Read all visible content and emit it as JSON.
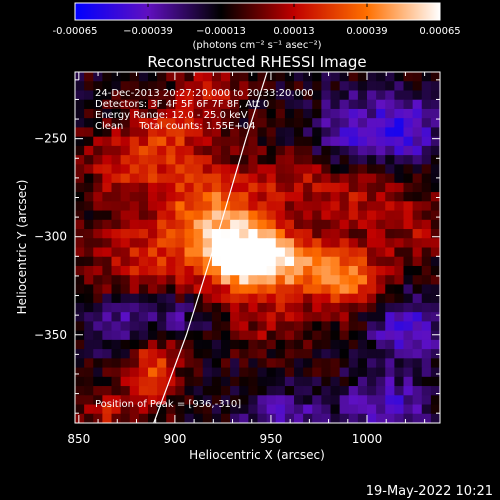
{
  "chart_data": {
    "type": "heatmap",
    "title": "Reconstructed RHESSI Image",
    "xlabel": "Heliocentric X (arcsec)",
    "ylabel": "Heliocentric Y (arcsec)",
    "xlim": [
      848,
      1038
    ],
    "ylim": [
      -395,
      -216
    ],
    "x_ticks": [
      850,
      900,
      950,
      1000
    ],
    "y_ticks": [
      -250,
      -300,
      -350
    ],
    "x_tick_labels": [
      "850",
      "900",
      "950",
      "1000"
    ],
    "y_tick_labels": [
      "−250",
      "−300",
      "−350"
    ],
    "colorbar": {
      "range": [
        -0.00065,
        0.00065
      ],
      "ticks": [
        -0.00065,
        -0.00039,
        -0.00013,
        0.00013,
        0.00039,
        0.00065
      ],
      "tick_labels": [
        "-0.00065",
        "−0.00039",
        "−0.00013",
        "0.00013",
        "0.00039",
        "0.00065"
      ],
      "unit_label": "(photons cm⁻² s⁻¹ asec⁻²)",
      "colors": [
        "#0000ff",
        "#6010c0",
        "#000000",
        "#c00000",
        "#ff7000",
        "#ffffff"
      ]
    },
    "info_lines": [
      "24-Dec-2013 20:27:20.000 to 20:33:20.000",
      "Detectors: 3F 4F 5F 6F 7F 8F, Att 0",
      "Energy Range: 12.0 - 25.0 keV",
      "Clean     Total counts: 1.55E+04"
    ],
    "peak_label": "Position of Peak = [936,-310]",
    "peak": [
      936,
      -310
    ],
    "limb_curve": [
      [
        889,
        -395
      ],
      [
        906,
        -350
      ],
      [
        922,
        -300
      ],
      [
        937,
        -250
      ],
      [
        948,
        -216
      ]
    ],
    "blobs": [
      {
        "x": 936,
        "y": -310,
        "sx": 16,
        "sy": 12,
        "amp": 0.00085
      },
      {
        "x": 918,
        "y": -285,
        "sx": 20,
        "sy": 14,
        "amp": 0.00045
      },
      {
        "x": 968,
        "y": -315,
        "sx": 22,
        "sy": 12,
        "amp": 0.0004
      },
      {
        "x": 993,
        "y": -325,
        "sx": 14,
        "sy": 11,
        "amp": 0.00035
      },
      {
        "x": 885,
        "y": -312,
        "sx": 22,
        "sy": 14,
        "amp": 0.0003
      },
      {
        "x": 872,
        "y": -262,
        "sx": 14,
        "sy": 14,
        "amp": 0.00026
      },
      {
        "x": 898,
        "y": -252,
        "sx": 14,
        "sy": 14,
        "amp": 0.0003
      },
      {
        "x": 918,
        "y": -228,
        "sx": 12,
        "sy": 10,
        "amp": 0.00025
      },
      {
        "x": 962,
        "y": -272,
        "sx": 18,
        "sy": 10,
        "amp": 0.00022
      },
      {
        "x": 995,
        "y": -282,
        "sx": 14,
        "sy": 10,
        "amp": 0.00024
      },
      {
        "x": 1025,
        "y": -295,
        "sx": 12,
        "sy": 14,
        "amp": 0.0002
      },
      {
        "x": 888,
        "y": -368,
        "sx": 10,
        "sy": 12,
        "amp": 0.0004
      },
      {
        "x": 864,
        "y": -390,
        "sx": 10,
        "sy": 8,
        "amp": 0.00025
      },
      {
        "x": 948,
        "y": -345,
        "sx": 14,
        "sy": 10,
        "amp": 0.00018
      },
      {
        "x": 1020,
        "y": -245,
        "sx": 12,
        "sy": 12,
        "amp": -0.0004
      },
      {
        "x": 990,
        "y": -245,
        "sx": 12,
        "sy": 12,
        "amp": -0.0003
      },
      {
        "x": 955,
        "y": -390,
        "sx": 14,
        "sy": 8,
        "amp": -0.0003
      },
      {
        "x": 1020,
        "y": -345,
        "sx": 14,
        "sy": 12,
        "amp": -0.00035
      },
      {
        "x": 1010,
        "y": -385,
        "sx": 16,
        "sy": 10,
        "amp": -0.0003
      },
      {
        "x": 900,
        "y": -340,
        "sx": 12,
        "sy": 8,
        "amp": -0.0002
      },
      {
        "x": 870,
        "y": -345,
        "sx": 12,
        "sy": 10,
        "amp": -0.00025
      }
    ]
  },
  "timestamp": "19-May-2022 10:21"
}
